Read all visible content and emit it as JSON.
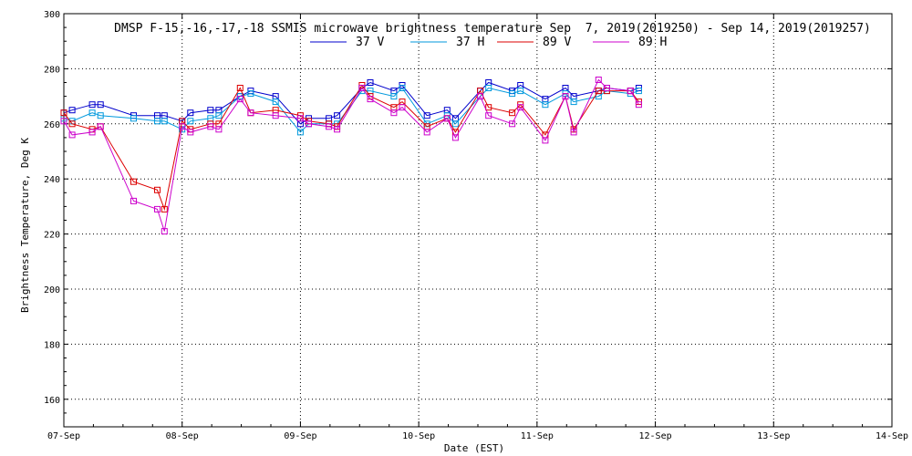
{
  "chart_data": {
    "type": "line",
    "title": "DMSP F-15,-16,-17,-18 SSMIS microwave brightness temperature Sep  7, 2019(2019250) - Sep 14, 2019(2019257)",
    "xlabel": "Date (EST)",
    "ylabel": "Brightness Temperature, Deg K",
    "xlim": [
      0,
      7
    ],
    "ylim": [
      150,
      300
    ],
    "yticks": [
      160,
      180,
      200,
      220,
      240,
      260,
      280,
      300
    ],
    "xticks": [
      0,
      1,
      2,
      3,
      4,
      5,
      6,
      7
    ],
    "xtick_labels": [
      "07-Sep",
      "08-Sep",
      "09-Sep",
      "10-Sep",
      "11-Sep",
      "12-Sep",
      "13-Sep",
      "14-Sep"
    ],
    "grid": true,
    "x": [
      0.0,
      0.07,
      0.24,
      0.31,
      0.59,
      0.79,
      0.85,
      1.0,
      1.07,
      1.24,
      1.31,
      1.49,
      1.58,
      1.79,
      2.0,
      2.07,
      2.24,
      2.31,
      2.52,
      2.59,
      2.79,
      2.86,
      3.07,
      3.24,
      3.31,
      3.52,
      3.59,
      3.79,
      3.86,
      4.07,
      4.24,
      4.31,
      4.52,
      4.59,
      4.79,
      4.86
    ],
    "series": [
      {
        "name": "37 V",
        "color": "#0000cc",
        "values": [
          264,
          265,
          267,
          267,
          263,
          263,
          263,
          261,
          264,
          265,
          265,
          270,
          272,
          270,
          260,
          262,
          262,
          263,
          273,
          275,
          272,
          274,
          263,
          265,
          262,
          272,
          275,
          272,
          274,
          269,
          273,
          270,
          272,
          273,
          272,
          273
        ]
      },
      {
        "name": "37 H",
        "color": "#0099dd",
        "values": [
          262,
          261,
          264,
          263,
          262,
          261,
          261,
          258,
          261,
          262,
          263,
          270,
          271,
          268,
          257,
          260,
          260,
          260,
          272,
          272,
          270,
          273,
          260,
          263,
          260,
          270,
          273,
          271,
          272,
          267,
          271,
          268,
          270,
          272,
          271,
          272
        ]
      },
      {
        "name": "89 V",
        "color": "#dd0000",
        "values": [
          264,
          260,
          258,
          259,
          239,
          236,
          229,
          261,
          258,
          260,
          260,
          273,
          264,
          265,
          263,
          261,
          260,
          259,
          274,
          270,
          266,
          268,
          259,
          262,
          257,
          272,
          266,
          264,
          267,
          256,
          270,
          258,
          272,
          272,
          272,
          268
        ]
      },
      {
        "name": "89 H",
        "color": "#cc00cc",
        "values": [
          261,
          256,
          257,
          259,
          232,
          229,
          221,
          259,
          257,
          259,
          258,
          269,
          264,
          263,
          262,
          260,
          259,
          258,
          273,
          269,
          264,
          266,
          257,
          262,
          255,
          270,
          263,
          260,
          266,
          254,
          270,
          257,
          276,
          273,
          272,
          267
        ]
      }
    ]
  }
}
